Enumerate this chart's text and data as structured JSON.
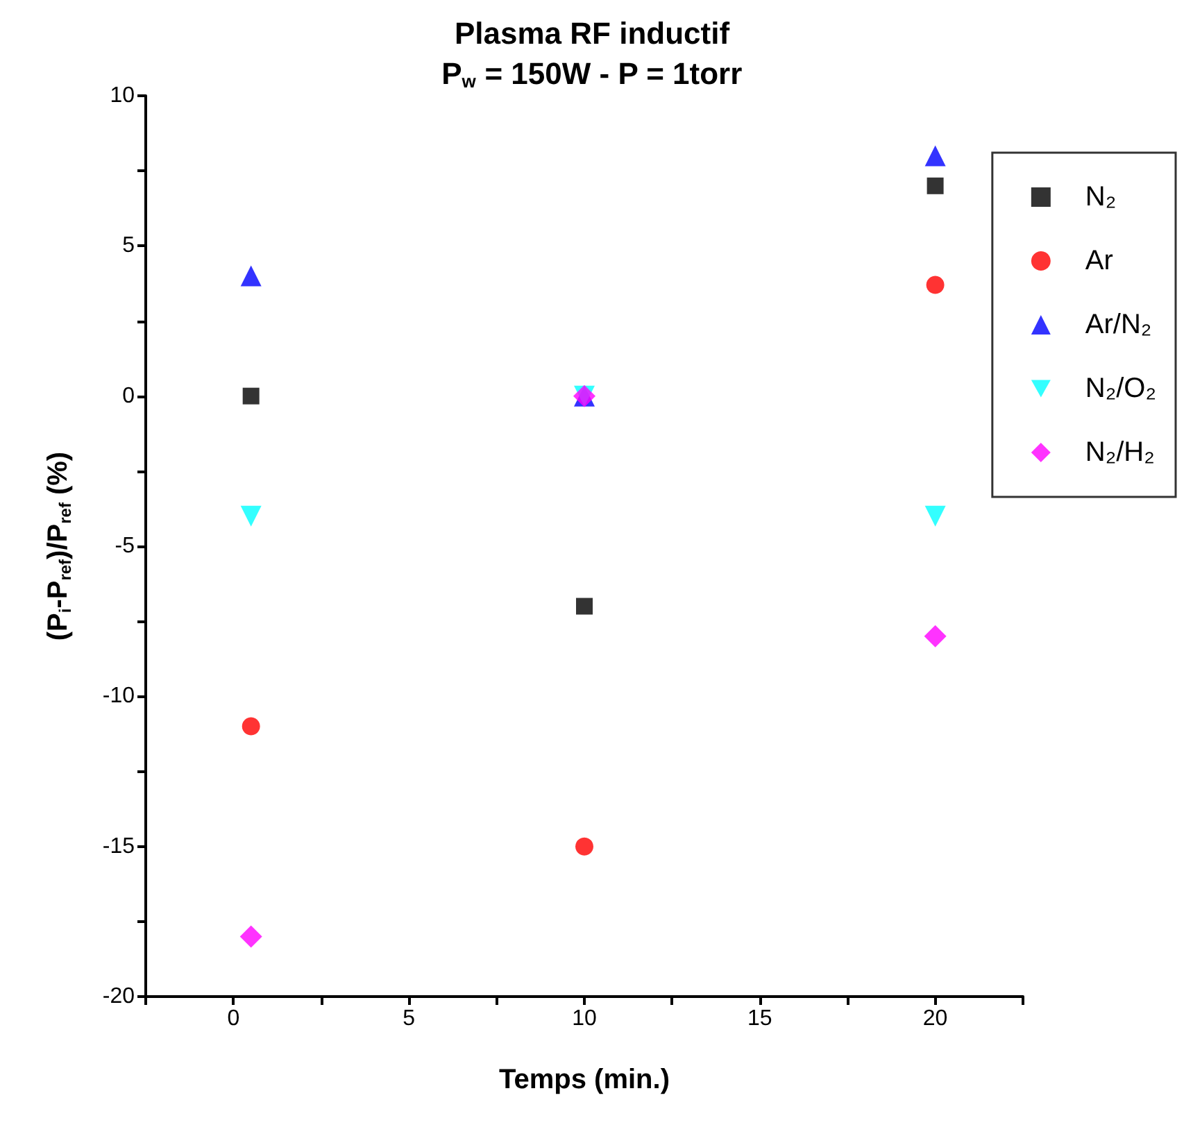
{
  "chart_data": {
    "type": "scatter",
    "title": "Plasma RF inductif",
    "subtitle": "P$_{w}$ = 150W - P = 1torr",
    "xlabel": "Temps (min.)",
    "ylabel": "(P$_{i}$-P$_{ref}$)/P$_{ref}$ (%)",
    "x": [
      0.5,
      10,
      20
    ],
    "series": [
      {
        "name": "N₂",
        "color": "#000000",
        "marker": "square",
        "values": [
          0,
          -7,
          7
        ]
      },
      {
        "name": "Ar",
        "color": "#ff0000",
        "marker": "circle",
        "values": [
          -11,
          -15,
          3.7
        ]
      },
      {
        "name": "Ar/N₂",
        "color": "#0000ff",
        "marker": "triangle",
        "values": [
          4,
          0,
          8
        ]
      },
      {
        "name": "N₂/O₂",
        "color": "#00ffff",
        "marker": "triangle-down",
        "values": [
          -4,
          0,
          -4
        ]
      },
      {
        "name": "N₂/H₂",
        "color": "#ff00ff",
        "marker": "diamond",
        "values": [
          -18,
          0,
          -8
        ]
      }
    ],
    "xlim": [
      -2.5,
      22.5
    ],
    "xticks": [
      {
        "value": -2.5,
        "label": null
      },
      0,
      {
        "value": 2.5,
        "label": null
      },
      5,
      {
        "value": 7.5,
        "label": null
      },
      10,
      {
        "value": 12.5,
        "label": null
      },
      15,
      {
        "value": 17.5,
        "label": null
      },
      20,
      {
        "value": 22.5,
        "label": null
      }
    ],
    "ylim": [
      -20,
      10
    ],
    "yticks": [
      -20,
      {
        "value": -17.5,
        "label": null
      },
      -15,
      {
        "value": -12.5,
        "label": null
      },
      -10,
      {
        "value": -7.5,
        "label": null
      },
      -5,
      {
        "value": -2.5,
        "label": null
      },
      0,
      {
        "value": 2.5,
        "label": null
      },
      5,
      {
        "value": 7.5,
        "label": null
      },
      10
    ],
    "grid": false,
    "legend": "right"
  }
}
